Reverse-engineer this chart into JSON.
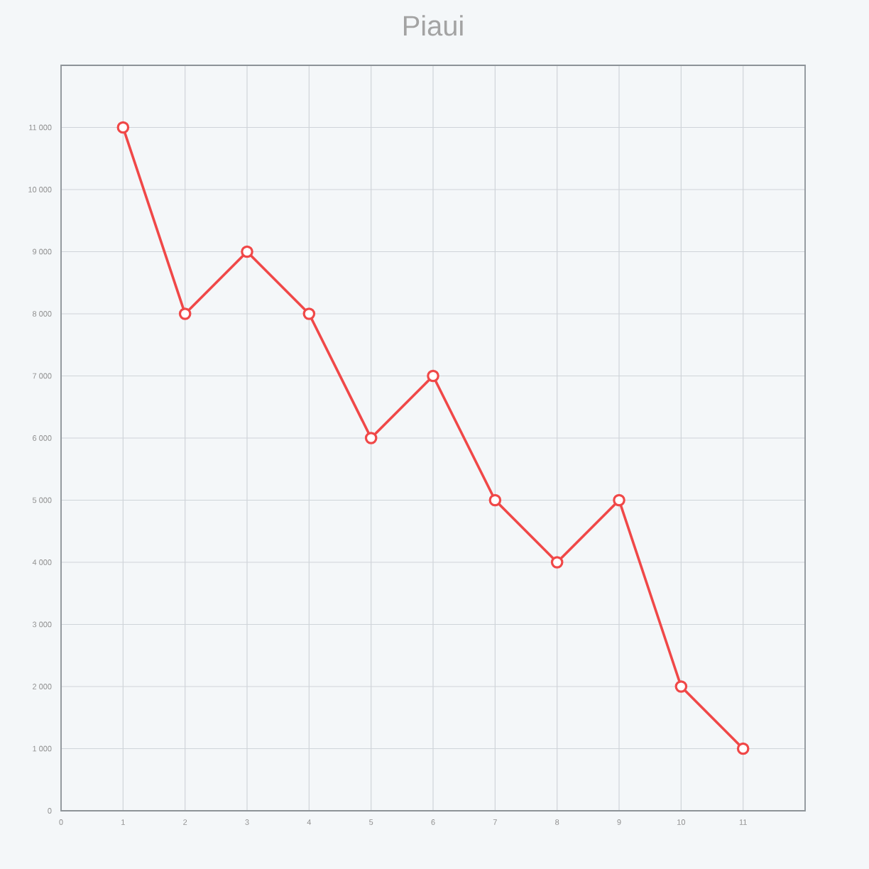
{
  "chart_data": {
    "type": "line",
    "title": "Piaui",
    "x": [
      1,
      2,
      3,
      4,
      5,
      6,
      7,
      8,
      9,
      10,
      11
    ],
    "series": [
      {
        "color": "#f04848",
        "values": [
          11000,
          8000,
          9000,
          8000,
          6000,
          7000,
          5000,
          4000,
          5000,
          2000,
          1000
        ]
      }
    ],
    "xlim": [
      0,
      12
    ],
    "ylim": [
      0,
      12000
    ],
    "xticks": [
      0,
      1,
      2,
      3,
      4,
      5,
      6,
      7,
      8,
      9,
      10,
      11
    ],
    "yticks": [
      0,
      {
        "value": 1000,
        "label": "1 000"
      },
      {
        "value": 2000,
        "label": "2 000"
      },
      {
        "value": 3000,
        "label": "3 000"
      },
      {
        "value": 4000,
        "label": "4 000"
      },
      {
        "value": 5000,
        "label": "5 000"
      },
      {
        "value": 6000,
        "label": "6 000"
      },
      {
        "value": 7000,
        "label": "7 000"
      },
      {
        "value": 8000,
        "label": "8 000"
      },
      {
        "value": 9000,
        "label": "9 000"
      },
      {
        "value": 10000,
        "label": "10 000"
      },
      {
        "value": 11000,
        "label": "11 000"
      }
    ],
    "grid": true,
    "marker": "circle",
    "line_style": "solid"
  }
}
